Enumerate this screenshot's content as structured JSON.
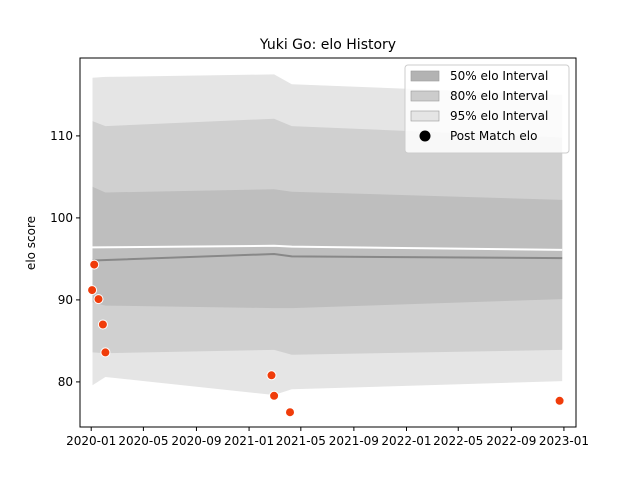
{
  "chart_data": {
    "type": "area",
    "title": "Yuki Go: elo History",
    "xlabel": "",
    "ylabel": "elo score",
    "xlim": [
      "2019-12-06",
      "2023-01-29"
    ],
    "ylim": [
      74.5,
      119.5
    ],
    "x_ticks": [
      "2020-01",
      "2020-05",
      "2020-09",
      "2021-01",
      "2021-05",
      "2021-09",
      "2022-01",
      "2022-05",
      "2022-09",
      "2023-01"
    ],
    "y_ticks": [
      80,
      90,
      100,
      110
    ],
    "grid": false,
    "legend_position": "top-right",
    "legend": [
      {
        "label": "50% elo Interval",
        "kind": "band",
        "color": "#b3b3b3"
      },
      {
        "label": "80% elo Interval",
        "kind": "band",
        "color": "#cccccc"
      },
      {
        "label": "95% elo Interval",
        "kind": "band",
        "color": "#e5e5e5"
      },
      {
        "label": "Post Match elo",
        "kind": "marker",
        "color": "#000000"
      }
    ],
    "colors": {
      "band50": "#bebebe",
      "band80": "#d0d0d0",
      "band95": "#e5e5e5",
      "median_line": "#888888",
      "mean_line": "#ffffff",
      "points": "#f03c0a"
    },
    "bands": {
      "x": [
        "2020-01-04",
        "2020-02-03",
        "2021-02-28",
        "2021-04-10",
        "2022-12-28"
      ],
      "p95_low": [
        79.6,
        80.6,
        78.4,
        79.1,
        80.1
      ],
      "p95_high": [
        117.1,
        117.2,
        117.5,
        116.3,
        115.0
      ],
      "p80_low": [
        83.6,
        83.5,
        83.9,
        83.3,
        83.9
      ],
      "p80_high": [
        111.8,
        111.2,
        112.1,
        111.2,
        109.8
      ],
      "p50_low": [
        89.7,
        89.3,
        89.0,
        89.0,
        90.1
      ],
      "p50_high": [
        103.8,
        103.1,
        103.5,
        103.2,
        102.2
      ]
    },
    "median": {
      "x": [
        "2020-01-04",
        "2021-02-28",
        "2021-04-10",
        "2022-12-28"
      ],
      "values": [
        94.8,
        95.6,
        95.3,
        95.1
      ]
    },
    "mean": {
      "x": [
        "2020-01-04",
        "2021-02-28",
        "2021-04-10",
        "2022-12-28"
      ],
      "values": [
        96.4,
        96.6,
        96.5,
        96.1
      ]
    },
    "series": [
      {
        "name": "Post Match elo",
        "x": [
          "2020-01-03",
          "2020-01-08",
          "2020-01-18",
          "2020-01-28",
          "2020-02-03",
          "2021-02-22",
          "2021-02-28",
          "2021-04-06",
          "2022-12-22"
        ],
        "values": [
          91.2,
          94.3,
          90.1,
          87.0,
          83.6,
          80.8,
          78.3,
          76.3,
          77.7
        ]
      }
    ]
  }
}
